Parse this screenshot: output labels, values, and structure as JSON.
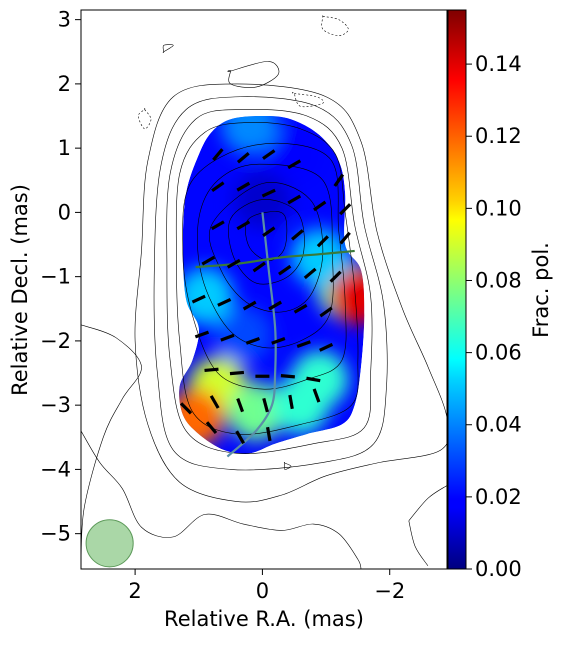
{
  "chart_data": {
    "type": "heatmap",
    "title": "",
    "xlabel": "Relative R.A. (mas)",
    "ylabel": "Relative Decl. (mas)",
    "xlim": [
      2.85,
      -2.9
    ],
    "ylim": [
      -5.55,
      3.15
    ],
    "x_ticks": [
      2,
      0,
      -2
    ],
    "x_tick_labels": [
      "2",
      "0",
      "−2"
    ],
    "y_ticks": [
      3,
      2,
      1,
      0,
      -1,
      -2,
      -3,
      -4,
      -5
    ],
    "y_tick_labels": [
      "3",
      "2",
      "1",
      "0",
      "−1",
      "−2",
      "−3",
      "−4",
      "−5"
    ],
    "colorbar": {
      "label": "Frac. pol.",
      "colormap": "jet",
      "range": [
        0.0,
        0.155
      ],
      "ticks": [
        0.0,
        0.02,
        0.04,
        0.06,
        0.08,
        0.1,
        0.12,
        0.14
      ],
      "tick_labels": [
        "0.00",
        "0.02",
        "0.04",
        "0.06",
        "0.08",
        "0.10",
        "0.12",
        "0.14"
      ]
    },
    "beam": {
      "x": 2.4,
      "y": -5.15,
      "radius": 0.37,
      "color": "#8dc98a"
    },
    "polarized_region": {
      "description_in_data_units": "fractional polarization map clipped to jet region",
      "outline": [
        [
          0.5,
          1.45
        ],
        [
          0.0,
          1.5
        ],
        [
          -0.45,
          1.45
        ],
        [
          -0.9,
          1.2
        ],
        [
          -1.2,
          0.8
        ],
        [
          -1.3,
          0.3
        ],
        [
          -1.3,
          -0.5
        ],
        [
          -1.55,
          -0.9
        ],
        [
          -1.6,
          -1.6
        ],
        [
          -1.55,
          -2.4
        ],
        [
          -1.45,
          -3.0
        ],
        [
          -1.25,
          -3.3
        ],
        [
          -0.7,
          -3.45
        ],
        [
          -0.2,
          -3.6
        ],
        [
          0.2,
          -3.75
        ],
        [
          0.6,
          -3.7
        ],
        [
          1.0,
          -3.45
        ],
        [
          1.25,
          -3.15
        ],
        [
          1.3,
          -2.7
        ],
        [
          1.1,
          -2.3
        ],
        [
          1.0,
          -1.8
        ],
        [
          1.2,
          -1.35
        ],
        [
          1.25,
          -0.5
        ],
        [
          1.2,
          0.3
        ],
        [
          1.0,
          0.9
        ],
        [
          0.8,
          1.25
        ]
      ],
      "blobs": [
        {
          "x": 0.0,
          "y": 0.2,
          "value": 0.012
        },
        {
          "x": -0.5,
          "y": 0.9,
          "value": 0.02
        },
        {
          "x": -1.3,
          "y": -1.2,
          "value": 0.07
        },
        {
          "x": -1.5,
          "y": -1.3,
          "value": 0.14
        },
        {
          "x": -0.9,
          "y": -0.7,
          "value": 0.05
        },
        {
          "x": 0.3,
          "y": -1.9,
          "value": 0.03
        },
        {
          "x": 0.9,
          "y": -1.3,
          "value": 0.05
        },
        {
          "x": 0.7,
          "y": -2.7,
          "value": 0.09
        },
        {
          "x": 0.1,
          "y": -3.1,
          "value": 0.075
        },
        {
          "x": -0.6,
          "y": -3.0,
          "value": 0.065
        },
        {
          "x": -0.9,
          "y": -2.6,
          "value": 0.065
        },
        {
          "x": 1.05,
          "y": -3.2,
          "value": 0.12
        },
        {
          "x": 0.2,
          "y": 1.35,
          "value": 0.04
        }
      ]
    },
    "contours": [
      [
        [
          -0.05,
          0.0
        ],
        [
          -0.35,
          -0.05
        ],
        [
          -0.35,
          -0.55
        ],
        [
          -0.1,
          -0.75
        ],
        [
          0.2,
          -0.55
        ],
        [
          0.25,
          -0.15
        ]
      ],
      [
        [
          0.0,
          0.2
        ],
        [
          -0.55,
          0.0
        ],
        [
          -0.65,
          -0.6
        ],
        [
          -0.4,
          -1.0
        ],
        [
          0.1,
          -1.1
        ],
        [
          0.45,
          -0.7
        ],
        [
          0.5,
          -0.1
        ]
      ],
      [
        [
          0.0,
          0.45
        ],
        [
          -0.75,
          0.2
        ],
        [
          -0.95,
          -0.6
        ],
        [
          -0.75,
          -1.3
        ],
        [
          -0.3,
          -1.55
        ],
        [
          0.25,
          -1.4
        ],
        [
          0.65,
          -0.9
        ],
        [
          0.8,
          -0.2
        ]
      ],
      [
        [
          0.05,
          0.75
        ],
        [
          -0.95,
          0.5
        ],
        [
          -1.1,
          -0.7
        ],
        [
          -1.05,
          -1.6
        ],
        [
          -0.6,
          -2.0
        ],
        [
          0.0,
          -2.1
        ],
        [
          0.55,
          -1.8
        ],
        [
          0.95,
          -1.0
        ],
        [
          1.0,
          -0.1
        ],
        [
          0.7,
          0.5
        ]
      ],
      [
        [
          0.1,
          1.05
        ],
        [
          -1.05,
          0.85
        ],
        [
          -1.2,
          -0.3
        ],
        [
          -1.3,
          -1.4
        ],
        [
          -1.25,
          -2.3
        ],
        [
          -0.7,
          -2.6
        ],
        [
          0.0,
          -2.75
        ],
        [
          0.7,
          -2.5
        ],
        [
          1.1,
          -1.6
        ],
        [
          1.25,
          -0.6
        ],
        [
          1.1,
          0.5
        ]
      ],
      [
        [
          0.2,
          1.4
        ],
        [
          -0.6,
          1.3
        ],
        [
          -1.15,
          0.9
        ],
        [
          -1.3,
          0.0
        ],
        [
          -1.45,
          -1.2
        ],
        [
          -1.5,
          -2.3
        ],
        [
          -1.4,
          -3.0
        ],
        [
          -0.6,
          -3.3
        ],
        [
          0.4,
          -3.45
        ],
        [
          1.1,
          -3.1
        ],
        [
          1.3,
          -2.0
        ],
        [
          1.35,
          -0.8
        ],
        [
          1.3,
          0.6
        ],
        [
          0.9,
          1.25
        ]
      ],
      [
        [
          0.3,
          1.6
        ],
        [
          -0.7,
          1.5
        ],
        [
          -1.25,
          1.0
        ],
        [
          -1.45,
          -0.2
        ],
        [
          -1.7,
          -1.3
        ],
        [
          -1.7,
          -2.5
        ],
        [
          -1.6,
          -3.35
        ],
        [
          -0.8,
          -3.6
        ],
        [
          0.4,
          -3.75
        ],
        [
          1.2,
          -3.4
        ],
        [
          1.45,
          -2.3
        ],
        [
          1.5,
          -0.9
        ],
        [
          1.45,
          0.6
        ],
        [
          1.05,
          1.45
        ]
      ],
      [
        [
          0.35,
          1.8
        ],
        [
          -0.85,
          1.65
        ],
        [
          -1.4,
          1.05
        ],
        [
          -1.6,
          -0.2
        ],
        [
          -1.9,
          -1.4
        ],
        [
          -1.95,
          -2.7
        ],
        [
          -1.75,
          -3.6
        ],
        [
          -0.9,
          -3.9
        ],
        [
          0.5,
          -4.0
        ],
        [
          1.4,
          -3.7
        ],
        [
          1.65,
          -2.5
        ],
        [
          1.7,
          -1.0
        ],
        [
          1.6,
          0.7
        ],
        [
          1.2,
          1.6
        ]
      ],
      [
        [
          0.4,
          2.0
        ],
        [
          -1.0,
          1.8
        ],
        [
          -1.55,
          1.1
        ],
        [
          -1.8,
          -0.3
        ],
        [
          -2.2,
          -1.5
        ],
        [
          -2.6,
          -2.4
        ],
        [
          -2.9,
          -3.2
        ],
        [
          -2.8,
          -3.7
        ],
        [
          -1.8,
          -3.9
        ],
        [
          -1.0,
          -4.1
        ],
        [
          -0.3,
          -4.4
        ],
        [
          0.4,
          -4.5
        ],
        [
          1.3,
          -4.2
        ],
        [
          1.8,
          -3.3
        ],
        [
          2.0,
          -2.0
        ],
        [
          1.9,
          -0.6
        ],
        [
          1.8,
          0.8
        ],
        [
          1.4,
          1.8
        ]
      ],
      [
        [
          2.85,
          -1.75
        ],
        [
          2.3,
          -1.95
        ],
        [
          1.9,
          -2.4
        ],
        [
          2.2,
          -2.9
        ],
        [
          2.5,
          -3.5
        ],
        [
          2.8,
          -4.6
        ],
        [
          2.85,
          -5.5
        ]
      ],
      [
        [
          2.85,
          -3.4
        ],
        [
          2.55,
          -3.9
        ],
        [
          2.2,
          -4.3
        ],
        [
          1.9,
          -4.9
        ],
        [
          1.4,
          -5.05
        ],
        [
          0.9,
          -4.7
        ],
        [
          0.3,
          -4.85
        ],
        [
          -0.3,
          -4.95
        ],
        [
          -0.8,
          -4.85
        ],
        [
          -1.2,
          -5.0
        ],
        [
          -1.5,
          -5.4
        ],
        [
          -1.55,
          -5.55
        ]
      ],
      [
        [
          -2.3,
          -4.8
        ],
        [
          -2.4,
          -5.2
        ],
        [
          -2.6,
          -5.5
        ]
      ],
      [
        [
          -2.9,
          -4.25
        ],
        [
          -2.6,
          -4.45
        ],
        [
          -2.3,
          -4.8
        ]
      ],
      [
        [
          0.5,
          2.2
        ],
        [
          -0.1,
          2.35
        ],
        [
          -0.25,
          2.15
        ],
        [
          0.1,
          1.95
        ],
        [
          0.5,
          2.0
        ],
        [
          0.5,
          2.2
        ]
      ],
      [
        [
          1.55,
          2.5
        ],
        [
          1.4,
          2.6
        ],
        [
          1.55,
          2.6
        ],
        [
          1.55,
          2.5
        ]
      ],
      [
        [
          -0.35,
          -3.9
        ],
        [
          -0.45,
          -3.95
        ],
        [
          -0.35,
          -4.0
        ],
        [
          -0.35,
          -3.9
        ]
      ]
    ],
    "dashed_contours": [
      [
        [
          -0.95,
          3.05
        ],
        [
          -1.2,
          3.0
        ],
        [
          -1.35,
          2.85
        ],
        [
          -1.2,
          2.75
        ],
        [
          -0.95,
          2.85
        ],
        [
          -0.95,
          3.05
        ]
      ],
      [
        [
          1.85,
          1.6
        ],
        [
          1.75,
          1.45
        ],
        [
          1.85,
          1.3
        ],
        [
          1.95,
          1.5
        ],
        [
          1.85,
          1.6
        ]
      ],
      [
        [
          -0.5,
          1.85
        ],
        [
          -0.85,
          1.8
        ],
        [
          -0.95,
          1.7
        ],
        [
          -0.6,
          1.65
        ],
        [
          -0.5,
          1.85
        ]
      ]
    ],
    "ridge_lines": [
      {
        "color": "#5a8fa8",
        "points": [
          [
            0.0,
            0.0
          ],
          [
            -0.1,
            -0.9
          ],
          [
            -0.2,
            -1.8
          ],
          [
            -0.2,
            -2.5
          ],
          [
            -0.15,
            -3.0
          ],
          [
            0.1,
            -3.4
          ],
          [
            0.55,
            -3.8
          ]
        ]
      },
      {
        "color": "#3a7a3a",
        "points": [
          [
            1.05,
            -0.85
          ],
          [
            0.4,
            -0.8
          ],
          [
            -0.3,
            -0.7
          ],
          [
            -0.9,
            -0.65
          ],
          [
            -1.45,
            -0.6
          ]
        ]
      }
    ],
    "evpa_ticks": [
      {
        "x": 0.7,
        "y": 0.9,
        "angle": -50
      },
      {
        "x": 0.3,
        "y": 0.85,
        "angle": -40
      },
      {
        "x": -0.1,
        "y": 0.9,
        "angle": -35
      },
      {
        "x": -0.5,
        "y": 0.75,
        "angle": -30
      },
      {
        "x": -1.2,
        "y": 0.5,
        "angle": -55
      },
      {
        "x": 0.7,
        "y": 0.4,
        "angle": -35
      },
      {
        "x": 0.3,
        "y": 0.4,
        "angle": -30
      },
      {
        "x": -0.1,
        "y": 0.3,
        "angle": -25
      },
      {
        "x": -0.5,
        "y": 0.2,
        "angle": -30
      },
      {
        "x": -0.9,
        "y": 0.1,
        "angle": -35
      },
      {
        "x": -1.3,
        "y": 0.05,
        "angle": -45
      },
      {
        "x": 0.7,
        "y": -0.2,
        "angle": -30
      },
      {
        "x": 0.3,
        "y": -0.2,
        "angle": -30
      },
      {
        "x": -0.1,
        "y": -0.3,
        "angle": -35
      },
      {
        "x": -0.55,
        "y": -0.35,
        "angle": -40
      },
      {
        "x": -0.95,
        "y": -0.45,
        "angle": -45
      },
      {
        "x": -1.3,
        "y": -0.4,
        "angle": -50
      },
      {
        "x": 0.85,
        "y": -0.75,
        "angle": -30
      },
      {
        "x": 0.45,
        "y": -0.8,
        "angle": -30
      },
      {
        "x": 0.05,
        "y": -0.85,
        "angle": -35
      },
      {
        "x": -0.35,
        "y": -0.9,
        "angle": -35
      },
      {
        "x": -0.75,
        "y": -0.95,
        "angle": -40
      },
      {
        "x": -1.15,
        "y": -1.0,
        "angle": -45
      },
      {
        "x": 1.0,
        "y": -1.35,
        "angle": -25
      },
      {
        "x": 0.6,
        "y": -1.4,
        "angle": -25
      },
      {
        "x": 0.2,
        "y": -1.45,
        "angle": -30
      },
      {
        "x": -0.2,
        "y": -1.45,
        "angle": -30
      },
      {
        "x": -0.6,
        "y": -1.5,
        "angle": -30
      },
      {
        "x": -1.0,
        "y": -1.55,
        "angle": -35
      },
      {
        "x": 0.95,
        "y": -1.9,
        "angle": -20
      },
      {
        "x": 0.55,
        "y": -1.95,
        "angle": -20
      },
      {
        "x": 0.15,
        "y": -2.0,
        "angle": -20
      },
      {
        "x": -0.25,
        "y": -2.0,
        "angle": -20
      },
      {
        "x": -0.65,
        "y": -2.05,
        "angle": -20
      },
      {
        "x": -1.0,
        "y": -2.1,
        "angle": -25
      },
      {
        "x": 0.8,
        "y": -2.45,
        "angle": -5
      },
      {
        "x": 0.4,
        "y": -2.5,
        "angle": -5
      },
      {
        "x": 0.0,
        "y": -2.55,
        "angle": 0
      },
      {
        "x": -0.4,
        "y": -2.55,
        "angle": 5
      },
      {
        "x": -0.8,
        "y": -2.6,
        "angle": 10
      },
      {
        "x": 0.75,
        "y": -2.95,
        "angle": 60
      },
      {
        "x": 0.35,
        "y": -3.0,
        "angle": 70
      },
      {
        "x": -0.05,
        "y": -3.0,
        "angle": 75
      },
      {
        "x": -0.45,
        "y": -2.95,
        "angle": 80
      },
      {
        "x": -0.85,
        "y": -2.85,
        "angle": 70
      },
      {
        "x": 1.2,
        "y": -3.05,
        "angle": 45
      },
      {
        "x": 0.8,
        "y": -3.35,
        "angle": 50
      },
      {
        "x": 0.35,
        "y": -3.5,
        "angle": 60
      },
      {
        "x": -0.1,
        "y": -3.45,
        "angle": 80
      }
    ]
  }
}
